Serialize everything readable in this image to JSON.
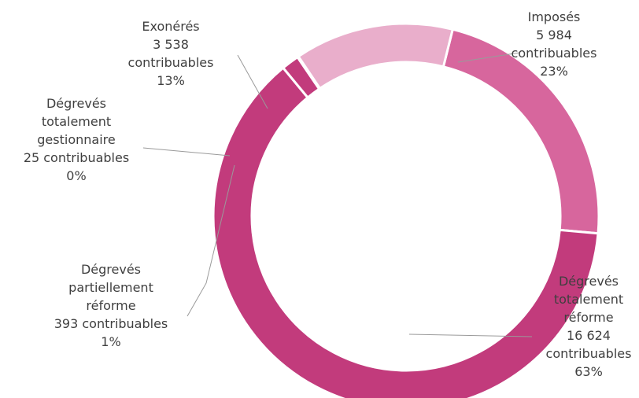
{
  "chart_data": {
    "type": "pie",
    "variant": "donut",
    "title": "",
    "slices": [
      {
        "name": "Imposés",
        "count_text": "5 984",
        "count_suffix": "contribuables",
        "value": 5984,
        "percent_text": "23%",
        "color": "#d7669d"
      },
      {
        "name": "Dégrevés totalement réforme",
        "count_text": "16 624",
        "count_suffix": "contribuables",
        "value": 16624,
        "percent_text": "63%",
        "color": "#c23b7c"
      },
      {
        "name": "Dégrevés partiellement réforme",
        "count_text": "393",
        "count_suffix": "contribuables",
        "value": 393,
        "percent_text": "1%",
        "color": "#c23b7c"
      },
      {
        "name": "Dégrevés totalement gestionnaire",
        "count_text": "25",
        "count_suffix": "contribuables",
        "value": 25,
        "percent_text": "0%",
        "color": "#a52a63"
      },
      {
        "name": "Exonérés",
        "count_text": "3 538",
        "count_suffix": "contribuables",
        "value": 3538,
        "percent_text": "13%",
        "color": "#e9aecb"
      }
    ],
    "labels": [
      {
        "slice": 0,
        "lines": [
          "Imposés",
          "5 984",
          "contribuables",
          "23%"
        ]
      },
      {
        "slice": 1,
        "lines": [
          "Dégrevés",
          "totalement",
          "réforme",
          "16 624",
          "contribuables",
          "63%"
        ]
      },
      {
        "slice": 2,
        "lines": [
          "Dégrevés",
          "partiellement",
          "réforme",
          "393 contribuables",
          "1%"
        ]
      },
      {
        "slice": 3,
        "lines": [
          "Dégrevés",
          "totalement",
          "gestionnaire",
          "25 contribuables",
          "0%"
        ]
      },
      {
        "slice": 4,
        "lines": [
          "Exonérés",
          "3 538",
          "contribuables",
          "13%"
        ]
      }
    ],
    "colors": {
      "text": "#3f3f3f",
      "leader": "#9a9a9a",
      "separator": "#ffffff"
    }
  }
}
